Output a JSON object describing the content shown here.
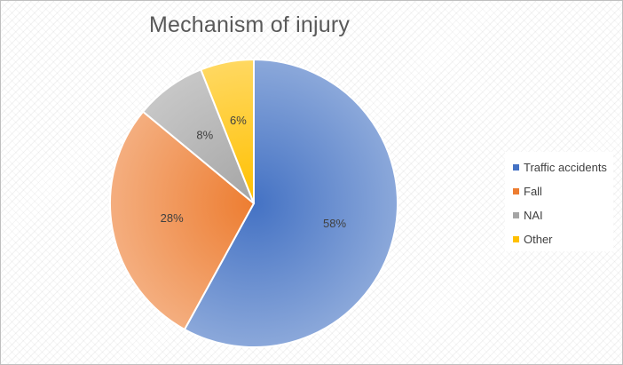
{
  "chart_data": {
    "type": "pie",
    "title": "Mechanism of injury",
    "categories": [
      "Traffic accidents",
      "Fall",
      "NAI",
      "Other"
    ],
    "values": [
      58,
      28,
      8,
      6
    ],
    "data_labels": [
      "58%",
      "28%",
      "8%",
      "6%"
    ],
    "colors": [
      "#4472c4",
      "#ed7d31",
      "#a5a5a5",
      "#ffc000"
    ],
    "legend_position": "right"
  }
}
